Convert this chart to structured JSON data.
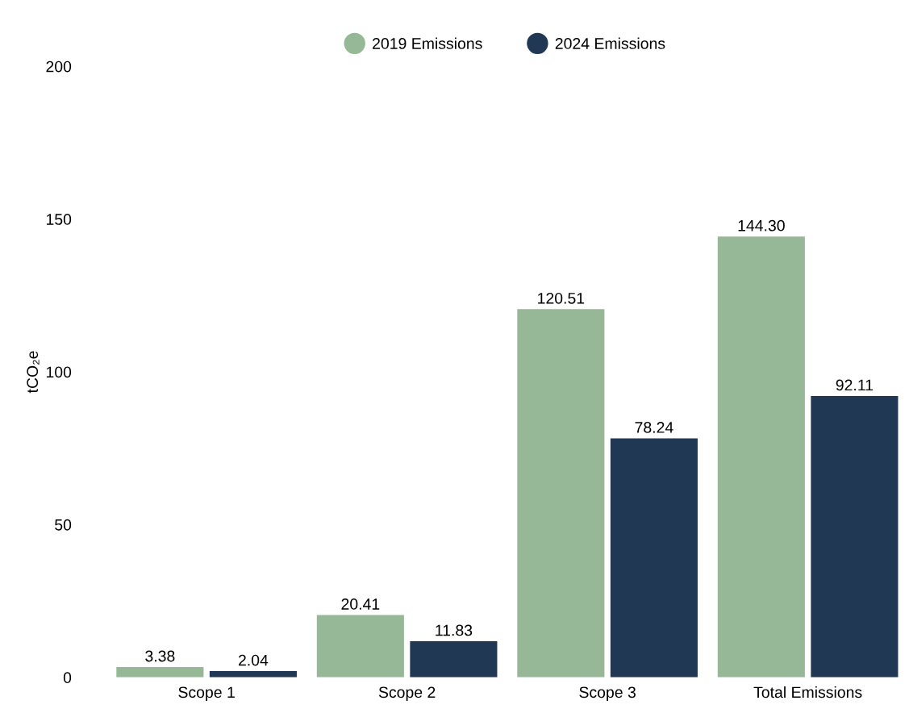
{
  "chart_data": {
    "type": "bar",
    "ylabel": "tCO₂e",
    "categories": [
      "Scope 1",
      "Scope 2",
      "Scope 3",
      "Total Emissions"
    ],
    "series": [
      {
        "name": "2019 Emissions",
        "color": "#96b896",
        "values": [
          3.38,
          20.41,
          120.51,
          144.3
        ],
        "value_labels": [
          "3.38",
          "20.41",
          "120.51",
          "144.30"
        ]
      },
      {
        "name": "2024 Emissions",
        "color": "#213855",
        "values": [
          2.04,
          11.83,
          78.24,
          92.11
        ],
        "value_labels": [
          "2.04",
          "11.83",
          "78.24",
          "92.11"
        ]
      }
    ],
    "ylim": [
      0,
      200
    ],
    "yticks": [
      0,
      50,
      100,
      150,
      200
    ],
    "grid": false,
    "legend": "top"
  }
}
